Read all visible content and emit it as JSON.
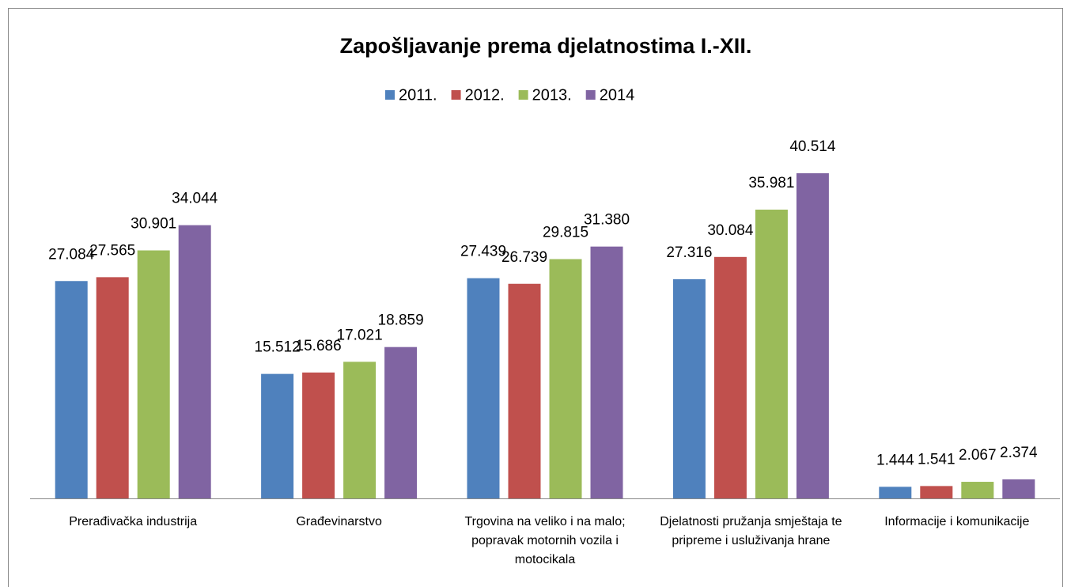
{
  "chart_data": {
    "type": "bar",
    "title": "Zapošljavanje prema djelatnostima I.-XII.",
    "categories": [
      "Prerađivačka industrija",
      "Građevinarstvo",
      "Trgovina na veliko i na malo; popravak motornih vozila i motocikala",
      "Djelatnosti pružanja smještaja te pripreme i usluživanja hrane",
      "Informacije i komunikacije"
    ],
    "series": [
      {
        "name": "2011.",
        "color": "#4f81bd",
        "values": [
          27084,
          15512,
          27439,
          27316,
          1444
        ],
        "value_labels": [
          "27.084",
          "15.512",
          "27.439",
          "27.316",
          "1.444"
        ]
      },
      {
        "name": "2012.",
        "color": "#c0504d",
        "values": [
          27565,
          15686,
          26739,
          30084,
          1541
        ],
        "value_labels": [
          "27.565",
          "15.686",
          "26.739",
          "30.084",
          "1.541"
        ]
      },
      {
        "name": "2013.",
        "color": "#9bbb59",
        "values": [
          30901,
          17021,
          29815,
          35981,
          2067
        ],
        "value_labels": [
          "30.901",
          "17.021",
          "29.815",
          "35.981",
          "2.067"
        ]
      },
      {
        "name": "2014",
        "color": "#8064a2",
        "values": [
          34044,
          18859,
          31380,
          40514,
          2374
        ],
        "value_labels": [
          "34.044",
          "18.859",
          "31.380",
          "40.514",
          "2.374"
        ]
      }
    ],
    "legend": "top"
  }
}
